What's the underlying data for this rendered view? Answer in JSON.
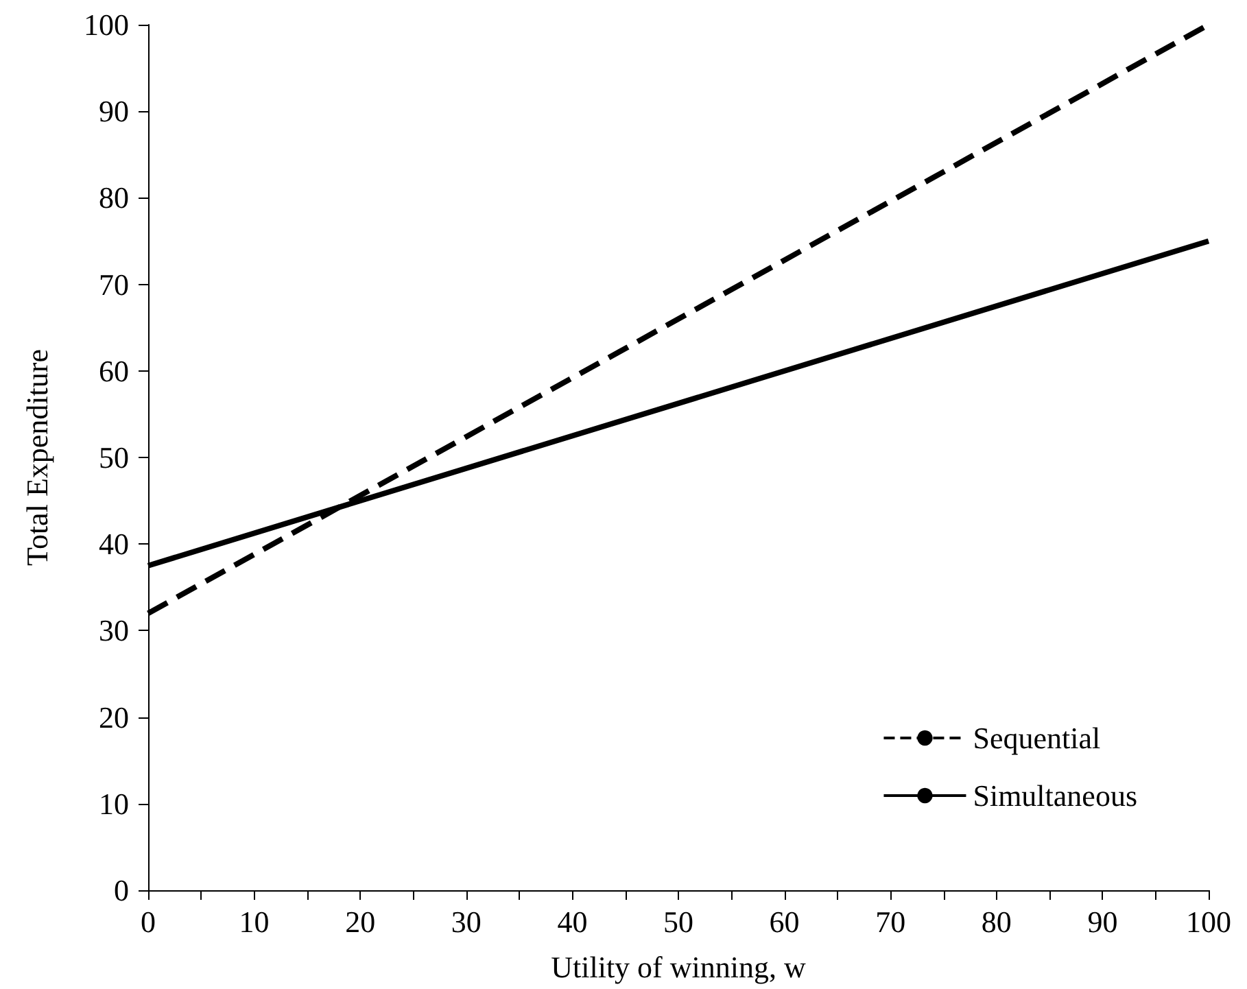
{
  "chart_data": {
    "type": "line",
    "xlabel": "Utility of winning, w",
    "ylabel": "Total Expenditure",
    "xlim": [
      0,
      100
    ],
    "ylim": [
      0,
      100
    ],
    "xticks": [
      0,
      {
        "value": 5,
        "label": null
      },
      10,
      {
        "value": 15,
        "label": null
      },
      20,
      {
        "value": 25,
        "label": null
      },
      30,
      {
        "value": 35,
        "label": null
      },
      40,
      {
        "value": 45,
        "label": null
      },
      50,
      {
        "value": 55,
        "label": null
      },
      60,
      {
        "value": 65,
        "label": null
      },
      70,
      {
        "value": 75,
        "label": null
      },
      80,
      {
        "value": 85,
        "label": null
      },
      90,
      {
        "value": 95,
        "label": null
      },
      100
    ],
    "yticks": [
      0,
      10,
      20,
      30,
      40,
      50,
      60,
      70,
      80,
      90,
      100
    ],
    "x": [
      0,
      100
    ],
    "series": [
      {
        "name": "Sequential",
        "color": "#000000",
        "line_style": "dashed",
        "values": [
          32,
          100
        ]
      },
      {
        "name": "Simultaneous",
        "color": "#000000",
        "line_style": "solid",
        "values": [
          37.5,
          75
        ]
      }
    ],
    "legend": "bottom right",
    "grid": false,
    "marker": "none"
  }
}
